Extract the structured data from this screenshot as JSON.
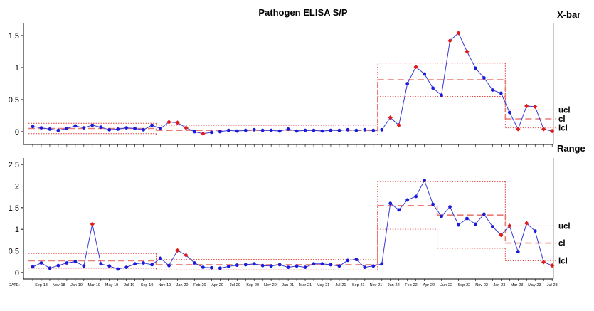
{
  "title": "Pathogen ELISA S/P",
  "date_label": "DATE:",
  "colors": {
    "in_control": "#1a1adb",
    "out_of_control": "#e01b1b",
    "line": "#3a3ad6",
    "limit": "#e2403c",
    "center": "#e87c74",
    "axis": "#000000"
  },
  "x_tick_labels": [
    "Sep-18",
    "Nov-18",
    "Jan-19",
    "Mar-19",
    "May-19",
    "Jul-19",
    "Sep-19",
    "Nov-19",
    "Jan-20",
    "Feb-20",
    "Apr-20",
    "Jul-20",
    "Sep-20",
    "Nov-20",
    "Jan-21",
    "Mar-21",
    "May-21",
    "Jul-21",
    "Sep-21",
    "Nov-21",
    "Jan-22",
    "Feb-22",
    "Apr-22",
    "Jun-22",
    "Sep-22",
    "Nov-22",
    "Jan-23",
    "Mar-23",
    "May-23",
    "Jul-23"
  ],
  "chart_data": [
    {
      "type": "line",
      "name": "X-bar",
      "panel_label": "X-bar",
      "ylim": [
        -0.2,
        1.7
      ],
      "yticks": [
        0,
        0.5,
        1,
        1.5
      ],
      "limit_labels": [
        "ucl",
        "cl",
        "lcl"
      ],
      "limit_label_values": [
        0.34,
        0.2,
        0.06
      ],
      "values": [
        0.08,
        0.06,
        0.04,
        0.02,
        0.05,
        0.09,
        0.06,
        0.1,
        0.07,
        0.03,
        0.04,
        0.06,
        0.05,
        0.03,
        0.1,
        0.05,
        0.15,
        0.14,
        0.06,
        0.0,
        -0.03,
        -0.01,
        0.0,
        0.02,
        0.01,
        0.02,
        0.03,
        0.02,
        0.02,
        0.01,
        0.04,
        0.01,
        0.02,
        0.02,
        0.01,
        0.02,
        0.02,
        0.03,
        0.02,
        0.03,
        0.02,
        0.03,
        0.22,
        0.1,
        0.75,
        1.01,
        0.9,
        0.68,
        0.57,
        1.42,
        1.54,
        1.25,
        0.99,
        0.84,
        0.65,
        0.6,
        0.3,
        0.04,
        0.4,
        0.39,
        0.04,
        0.01
      ],
      "flags": [
        0,
        0,
        0,
        0,
        0,
        0,
        0,
        0,
        0,
        0,
        0,
        0,
        0,
        0,
        0,
        0,
        1,
        1,
        1,
        0,
        1,
        0,
        0,
        0,
        0,
        0,
        0,
        0,
        0,
        0,
        0,
        0,
        0,
        0,
        0,
        0,
        0,
        0,
        0,
        0,
        0,
        0,
        1,
        1,
        0,
        1,
        0,
        0,
        0,
        1,
        1,
        1,
        0,
        0,
        0,
        0,
        0,
        1,
        1,
        1,
        1,
        1
      ],
      "phases": [
        {
          "start": 0,
          "end": 15,
          "ucl": 0.13,
          "cl": 0.05,
          "lcl": -0.03
        },
        {
          "start": 15,
          "end": 41,
          "ucl": 0.1,
          "cl": 0.02,
          "lcl": -0.05
        },
        {
          "start": 41,
          "end": 48,
          "ucl": 1.07,
          "cl": 0.81,
          "lcl": 0.55
        },
        {
          "start": 48,
          "end": 56,
          "ucl": 1.07,
          "cl": 0.81,
          "lcl": 0.55
        },
        {
          "start": 56,
          "end": 62,
          "ucl": 0.34,
          "cl": 0.2,
          "lcl": 0.06
        }
      ]
    },
    {
      "type": "line",
      "name": "Range",
      "panel_label": "Range",
      "ylim": [
        -0.15,
        2.65
      ],
      "yticks": [
        0,
        0.5,
        1,
        1.5,
        2,
        2.5
      ],
      "limit_labels": [
        "ucl",
        "cl",
        "lcl"
      ],
      "limit_label_values": [
        1.08,
        0.68,
        0.27
      ],
      "values": [
        0.13,
        0.22,
        0.1,
        0.16,
        0.22,
        0.25,
        0.15,
        1.12,
        0.2,
        0.15,
        0.08,
        0.12,
        0.2,
        0.22,
        0.18,
        0.33,
        0.16,
        0.51,
        0.4,
        0.22,
        0.12,
        0.11,
        0.1,
        0.14,
        0.17,
        0.18,
        0.2,
        0.16,
        0.15,
        0.18,
        0.12,
        0.15,
        0.12,
        0.2,
        0.2,
        0.18,
        0.15,
        0.28,
        0.3,
        0.12,
        0.15,
        0.2,
        1.6,
        1.45,
        1.68,
        1.76,
        2.13,
        1.58,
        1.3,
        1.52,
        1.1,
        1.25,
        1.12,
        1.35,
        1.06,
        0.87,
        1.08,
        0.48,
        1.14,
        0.96,
        0.24,
        0.16
      ],
      "flags": [
        0,
        0,
        0,
        0,
        0,
        0,
        0,
        1,
        0,
        0,
        0,
        0,
        0,
        0,
        0,
        0,
        0,
        1,
        1,
        0,
        0,
        0,
        0,
        0,
        0,
        0,
        0,
        0,
        0,
        0,
        0,
        0,
        0,
        0,
        0,
        0,
        0,
        0,
        0,
        0,
        0,
        0,
        0,
        0,
        0,
        0,
        0,
        0,
        0,
        0,
        0,
        0,
        0,
        0,
        0,
        1,
        1,
        0,
        1,
        0,
        1,
        1
      ],
      "phases": [
        {
          "start": 0,
          "end": 15,
          "ucl": 0.44,
          "cl": 0.27,
          "lcl": 0.1
        },
        {
          "start": 15,
          "end": 41,
          "ucl": 0.3,
          "cl": 0.18,
          "lcl": 0.06
        },
        {
          "start": 41,
          "end": 48,
          "ucl": 2.1,
          "cl": 1.55,
          "lcl": 1.0
        },
        {
          "start": 48,
          "end": 56,
          "ucl": 2.1,
          "cl": 1.33,
          "lcl": 0.56
        },
        {
          "start": 56,
          "end": 62,
          "ucl": 1.08,
          "cl": 0.68,
          "lcl": 0.27
        }
      ]
    }
  ]
}
